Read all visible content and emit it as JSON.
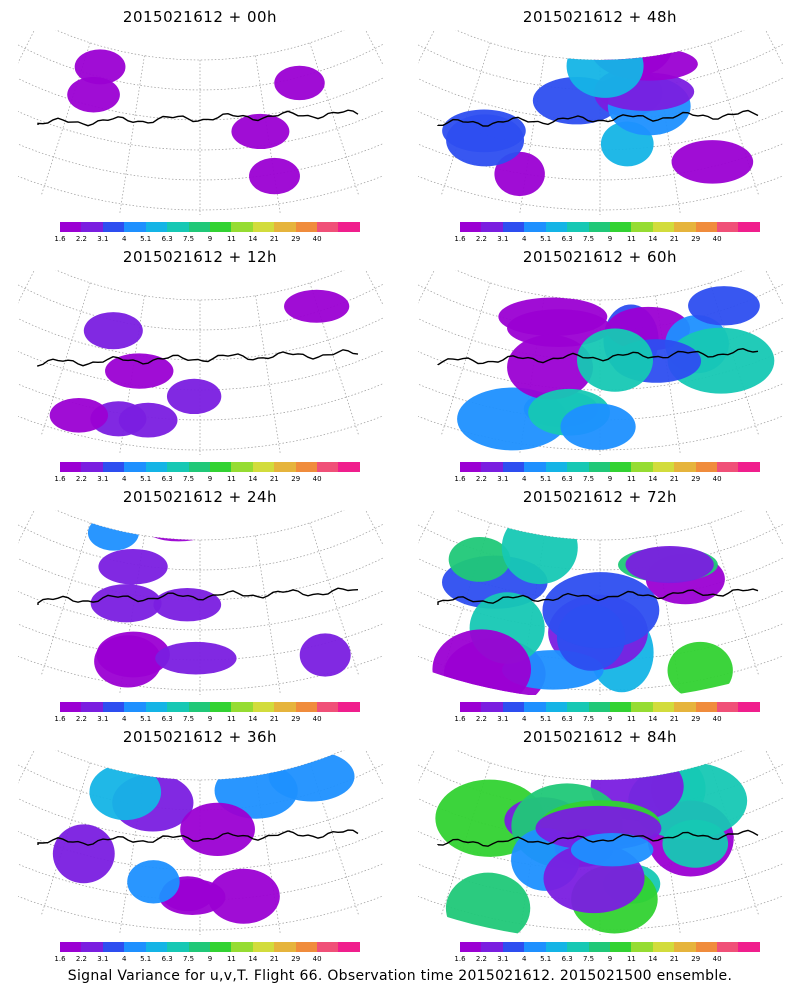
{
  "panels": [
    {
      "title": "2015021612 + 00h",
      "intensity": 0.1
    },
    {
      "title": "2015021612 + 48h",
      "intensity": 0.55
    },
    {
      "title": "2015021612 + 12h",
      "intensity": 0.22
    },
    {
      "title": "2015021612 + 60h",
      "intensity": 0.7
    },
    {
      "title": "2015021612 + 24h",
      "intensity": 0.35
    },
    {
      "title": "2015021612 + 72h",
      "intensity": 0.8
    },
    {
      "title": "2015021612 + 36h",
      "intensity": 0.45
    },
    {
      "title": "2015021612 + 84h",
      "intensity": 0.9
    }
  ],
  "colorbar": {
    "labels": [
      "1.6",
      "2.2",
      "3.1",
      "4",
      "5.1",
      "6.3",
      "7.5",
      "9",
      "11",
      "14",
      "21",
      "29",
      "40"
    ],
    "colors": [
      "#9b00d3",
      "#7a1ee0",
      "#2d4ef0",
      "#1e90ff",
      "#14b4e6",
      "#16c8b4",
      "#20c878",
      "#32d232",
      "#96dc32",
      "#d2dc3c",
      "#e6b43c",
      "#f08c3c",
      "#f05078",
      "#f01e8c"
    ]
  },
  "caption": "Signal Variance for u,v,T. Flight 66. Observation time 2015021612. 2015021500 ensemble."
}
